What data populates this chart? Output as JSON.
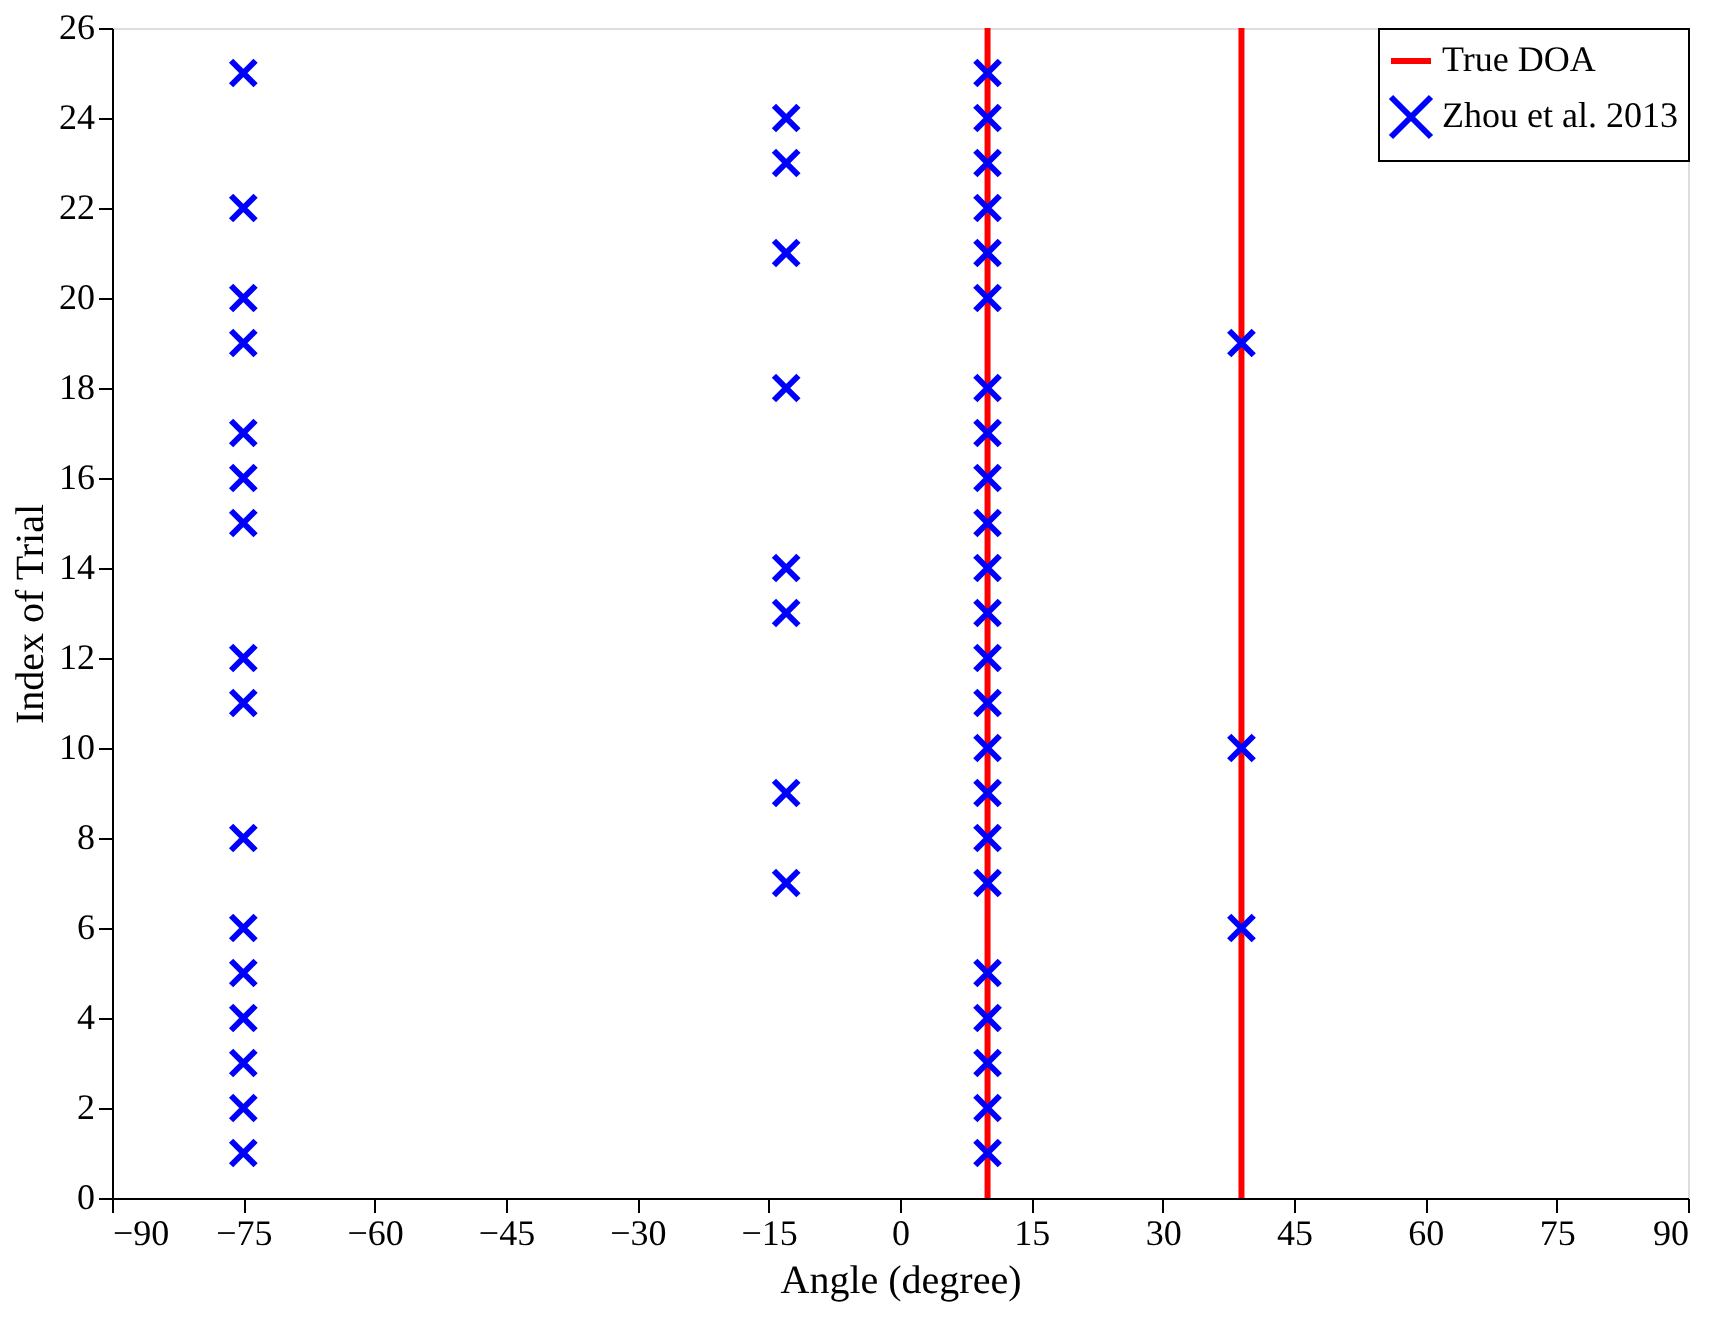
{
  "chart_data": {
    "type": "scatter",
    "xlabel": "Angle (degree)",
    "ylabel": "Index of Trial",
    "xlim": [
      -90,
      90
    ],
    "xticks": [
      -90,
      -75,
      -60,
      -45,
      -30,
      -15,
      0,
      15,
      30,
      45,
      60,
      75,
      90
    ],
    "ylim": [
      0,
      26
    ],
    "yticks": [
      0,
      2,
      4,
      6,
      8,
      10,
      12,
      14,
      16,
      18,
      20,
      22,
      24,
      26
    ],
    "grid": false,
    "legend": "top right",
    "marker": "cross",
    "series": [
      {
        "name": "True DOA",
        "type": "line",
        "marker": "none",
        "color": "#ff0000",
        "x": [
          10,
          10
        ],
        "values": [
          0,
          26
        ]
      },
      {
        "type": "line",
        "marker": "none",
        "color": "#ff0000",
        "x": [
          39,
          39
        ],
        "values": [
          0,
          26
        ]
      },
      {
        "name": "Zhou et al. 2013",
        "color": "#0000ff",
        "x": [
          -75,
          -75,
          -75,
          -75,
          -75,
          -75,
          -75,
          -75,
          -75,
          -75,
          -75,
          -75,
          -75,
          -75,
          -75,
          -75,
          -13,
          -13,
          -13,
          -13,
          -13,
          -13,
          -13,
          -13,
          10,
          10,
          10,
          10,
          10,
          10,
          10,
          10,
          10,
          10,
          10,
          10,
          10,
          10,
          10,
          10,
          10,
          10,
          10,
          10,
          10,
          10,
          10,
          39,
          39,
          39
        ],
        "values": [
          1,
          2,
          3,
          4,
          5,
          6,
          8,
          11,
          12,
          15,
          16,
          17,
          19,
          20,
          22,
          25,
          7,
          9,
          13,
          14,
          18,
          21,
          23,
          24,
          1,
          2,
          3,
          4,
          5,
          7,
          8,
          9,
          10,
          11,
          12,
          13,
          14,
          15,
          16,
          17,
          18,
          20,
          21,
          22,
          23,
          24,
          25,
          6,
          10,
          19
        ]
      }
    ]
  }
}
